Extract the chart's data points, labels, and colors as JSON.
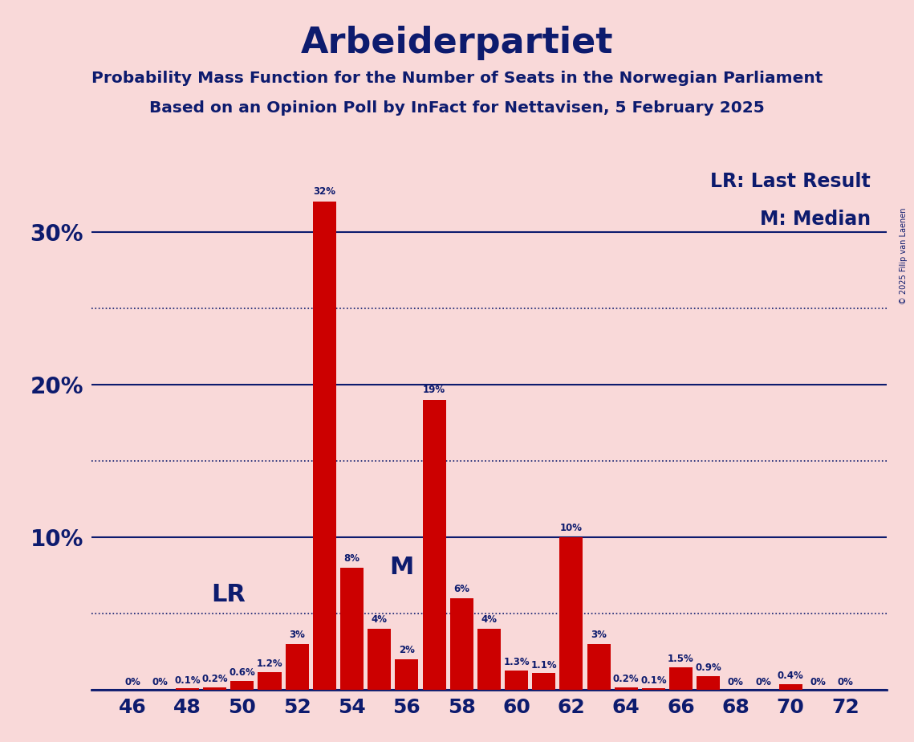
{
  "title": "Arbeiderpartiet",
  "subtitle1": "Probability Mass Function for the Number of Seats in the Norwegian Parliament",
  "subtitle2": "Based on an Opinion Poll by InFact for Nettavisen, 5 February 2025",
  "copyright": "© 2025 Filip van Laenen",
  "seats": [
    46,
    47,
    48,
    49,
    50,
    51,
    52,
    53,
    54,
    55,
    56,
    57,
    58,
    59,
    60,
    61,
    62,
    63,
    64,
    65,
    66,
    67,
    68,
    69,
    70,
    71,
    72
  ],
  "probabilities": [
    0.0,
    0.0,
    0.1,
    0.2,
    0.6,
    1.2,
    3.0,
    32.0,
    8.0,
    4.0,
    2.0,
    19.0,
    6.0,
    4.0,
    1.3,
    1.1,
    10.0,
    3.0,
    0.2,
    0.1,
    1.5,
    0.9,
    0.0,
    0.0,
    0.4,
    0.0,
    0.0
  ],
  "bar_color": "#cc0000",
  "axis_color": "#0d1b6e",
  "background_color": "#f9d9d9",
  "title_color": "#0d1b6e",
  "lr_seat": 48,
  "median_seat": 56,
  "xtick_seats": [
    46,
    48,
    50,
    52,
    54,
    56,
    58,
    60,
    62,
    64,
    66,
    68,
    70,
    72
  ],
  "ysolid": [
    0,
    10,
    20,
    30
  ],
  "ydotted": [
    5,
    15,
    25
  ],
  "ylim": [
    0,
    35
  ],
  "legend_lr": "LR: Last Result",
  "legend_m": "M: Median",
  "lr_label": "LR",
  "m_label": "M"
}
